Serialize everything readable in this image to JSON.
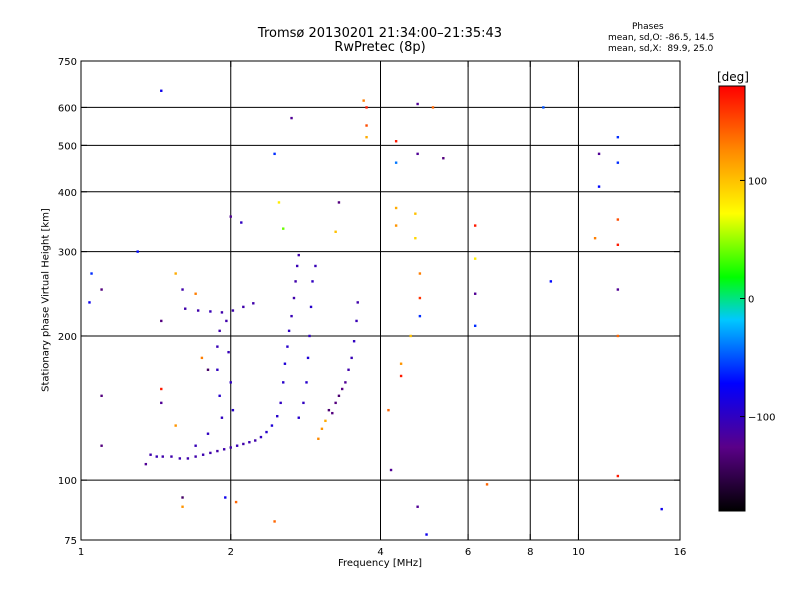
{
  "header": {
    "title_line1": "Tromsø 20130201 21:34:00–21:35:43",
    "title_line2": "RwPretec (8p)",
    "phases_heading": "Phases",
    "stats_o": "mean, sd,O: -86.5, 14.5",
    "stats_x": "mean, sd,X:  89.9, 25.0"
  },
  "colorbar": {
    "title": "[deg]",
    "ticks": [
      {
        "value": 100,
        "label": "100"
      },
      {
        "value": 0,
        "label": "0"
      },
      {
        "value": -100,
        "label": "−100"
      }
    ],
    "range": [
      -180,
      180
    ]
  },
  "chart_data": {
    "type": "scatter",
    "xlabel": "Frequency [MHz]",
    "ylabel": "Stationary phase Virtual Height [km]",
    "x_scale": "log",
    "y_scale": "log",
    "xlim": [
      1,
      16
    ],
    "ylim": [
      75,
      750
    ],
    "x_ticks": [
      {
        "value": 1,
        "label": "1"
      },
      {
        "value": 2,
        "label": "2"
      },
      {
        "value": 4,
        "label": "4"
      },
      {
        "value": 6,
        "label": "6"
      },
      {
        "value": 8,
        "label": "8"
      },
      {
        "value": 10,
        "label": "10"
      },
      {
        "value": 16,
        "label": "16"
      }
    ],
    "y_ticks": [
      {
        "value": 75,
        "label": "75"
      },
      {
        "value": 100,
        "label": "100"
      },
      {
        "value": 200,
        "label": "200"
      },
      {
        "value": 300,
        "label": "300"
      },
      {
        "value": 400,
        "label": "400"
      },
      {
        "value": 500,
        "label": "500"
      },
      {
        "value": 600,
        "label": "600"
      },
      {
        "value": 750,
        "label": "750"
      }
    ],
    "x_gridlines": [
      2,
      4,
      6,
      8,
      10
    ],
    "y_gridlines": [
      100,
      200,
      300,
      400,
      500,
      600
    ],
    "color_meaning": "phase [deg]",
    "points": [
      {
        "x": 1.38,
        "y": 113,
        "phase": -110
      },
      {
        "x": 1.42,
        "y": 112,
        "phase": -105
      },
      {
        "x": 1.46,
        "y": 112,
        "phase": -110
      },
      {
        "x": 1.52,
        "y": 112,
        "phase": -110
      },
      {
        "x": 1.58,
        "y": 111,
        "phase": -108
      },
      {
        "x": 1.64,
        "y": 111,
        "phase": -110
      },
      {
        "x": 1.7,
        "y": 112,
        "phase": -110
      },
      {
        "x": 1.76,
        "y": 113,
        "phase": -108
      },
      {
        "x": 1.82,
        "y": 114,
        "phase": -110
      },
      {
        "x": 1.88,
        "y": 115,
        "phase": -112
      },
      {
        "x": 1.94,
        "y": 116,
        "phase": -110
      },
      {
        "x": 2.0,
        "y": 117,
        "phase": -110
      },
      {
        "x": 2.06,
        "y": 118,
        "phase": -105
      },
      {
        "x": 2.12,
        "y": 119,
        "phase": -110
      },
      {
        "x": 2.18,
        "y": 120,
        "phase": -108
      },
      {
        "x": 2.24,
        "y": 121,
        "phase": -110
      },
      {
        "x": 2.3,
        "y": 123,
        "phase": -100
      },
      {
        "x": 2.36,
        "y": 126,
        "phase": -95
      },
      {
        "x": 2.42,
        "y": 130,
        "phase": -90
      },
      {
        "x": 2.48,
        "y": 136,
        "phase": -95
      },
      {
        "x": 2.52,
        "y": 145,
        "phase": -100
      },
      {
        "x": 2.55,
        "y": 160,
        "phase": -95
      },
      {
        "x": 2.57,
        "y": 175,
        "phase": -90
      },
      {
        "x": 2.6,
        "y": 190,
        "phase": -95
      },
      {
        "x": 2.62,
        "y": 205,
        "phase": -100
      },
      {
        "x": 2.65,
        "y": 220,
        "phase": -105
      },
      {
        "x": 2.68,
        "y": 240,
        "phase": -110
      },
      {
        "x": 2.7,
        "y": 260,
        "phase": -110
      },
      {
        "x": 2.72,
        "y": 280,
        "phase": -105
      },
      {
        "x": 2.74,
        "y": 295,
        "phase": -110
      },
      {
        "x": 1.62,
        "y": 228,
        "phase": -110
      },
      {
        "x": 1.72,
        "y": 226,
        "phase": -110
      },
      {
        "x": 1.82,
        "y": 225,
        "phase": -105
      },
      {
        "x": 1.92,
        "y": 224,
        "phase": -110
      },
      {
        "x": 2.02,
        "y": 226,
        "phase": -108
      },
      {
        "x": 2.12,
        "y": 230,
        "phase": -110
      },
      {
        "x": 2.22,
        "y": 234,
        "phase": -110
      },
      {
        "x": 1.92,
        "y": 135,
        "phase": -100
      },
      {
        "x": 1.9,
        "y": 150,
        "phase": -95
      },
      {
        "x": 1.88,
        "y": 170,
        "phase": -100
      },
      {
        "x": 1.88,
        "y": 190,
        "phase": -105
      },
      {
        "x": 1.9,
        "y": 205,
        "phase": -110
      },
      {
        "x": 1.96,
        "y": 215,
        "phase": -110
      },
      {
        "x": 1.98,
        "y": 185,
        "phase": -105
      },
      {
        "x": 2.0,
        "y": 160,
        "phase": -100
      },
      {
        "x": 2.02,
        "y": 140,
        "phase": -95
      },
      {
        "x": 1.8,
        "y": 125,
        "phase": -100
      },
      {
        "x": 1.7,
        "y": 118,
        "phase": -105
      },
      {
        "x": 2.92,
        "y": 260,
        "phase": -100
      },
      {
        "x": 2.9,
        "y": 230,
        "phase": -95
      },
      {
        "x": 2.88,
        "y": 200,
        "phase": -100
      },
      {
        "x": 2.86,
        "y": 180,
        "phase": -90
      },
      {
        "x": 2.84,
        "y": 160,
        "phase": -95
      },
      {
        "x": 2.8,
        "y": 145,
        "phase": -100
      },
      {
        "x": 2.74,
        "y": 135,
        "phase": -95
      },
      {
        "x": 2.96,
        "y": 280,
        "phase": -105
      },
      {
        "x": 3.25,
        "y": 145,
        "phase": -130
      },
      {
        "x": 3.3,
        "y": 150,
        "phase": -135
      },
      {
        "x": 3.35,
        "y": 155,
        "phase": -128
      },
      {
        "x": 3.4,
        "y": 160,
        "phase": -120
      },
      {
        "x": 3.45,
        "y": 170,
        "phase": -110
      },
      {
        "x": 3.5,
        "y": 180,
        "phase": -105
      },
      {
        "x": 3.54,
        "y": 195,
        "phase": -100
      },
      {
        "x": 3.58,
        "y": 215,
        "phase": -105
      },
      {
        "x": 3.6,
        "y": 235,
        "phase": -110
      },
      {
        "x": 3.15,
        "y": 140,
        "phase": -135
      },
      {
        "x": 3.2,
        "y": 138,
        "phase": -130
      },
      {
        "x": 3.1,
        "y": 133,
        "phase": 110
      },
      {
        "x": 3.05,
        "y": 128,
        "phase": 120
      },
      {
        "x": 3.0,
        "y": 122,
        "phase": 125
      },
      {
        "x": 1.45,
        "y": 650,
        "phase": -80
      },
      {
        "x": 2.65,
        "y": 570,
        "phase": -120
      },
      {
        "x": 3.75,
        "y": 600,
        "phase": 170
      },
      {
        "x": 3.7,
        "y": 620,
        "phase": 130
      },
      {
        "x": 3.75,
        "y": 550,
        "phase": 150
      },
      {
        "x": 3.75,
        "y": 520,
        "phase": 110
      },
      {
        "x": 4.75,
        "y": 610,
        "phase": -120
      },
      {
        "x": 5.1,
        "y": 600,
        "phase": 140
      },
      {
        "x": 4.3,
        "y": 510,
        "phase": 170
      },
      {
        "x": 4.3,
        "y": 460,
        "phase": -40
      },
      {
        "x": 4.75,
        "y": 480,
        "phase": -120
      },
      {
        "x": 5.35,
        "y": 470,
        "phase": -130
      },
      {
        "x": 4.3,
        "y": 370,
        "phase": 110
      },
      {
        "x": 4.3,
        "y": 340,
        "phase": 120
      },
      {
        "x": 4.7,
        "y": 360,
        "phase": 100
      },
      {
        "x": 4.7,
        "y": 320,
        "phase": 90
      },
      {
        "x": 4.8,
        "y": 270,
        "phase": 130
      },
      {
        "x": 4.8,
        "y": 240,
        "phase": 160
      },
      {
        "x": 4.8,
        "y": 220,
        "phase": -60
      },
      {
        "x": 4.6,
        "y": 200,
        "phase": 100
      },
      {
        "x": 4.4,
        "y": 175,
        "phase": 120
      },
      {
        "x": 4.4,
        "y": 165,
        "phase": 170
      },
      {
        "x": 4.15,
        "y": 140,
        "phase": 140
      },
      {
        "x": 4.2,
        "y": 105,
        "phase": -120
      },
      {
        "x": 4.75,
        "y": 88,
        "phase": -120
      },
      {
        "x": 4.95,
        "y": 77,
        "phase": -80
      },
      {
        "x": 6.2,
        "y": 340,
        "phase": 170
      },
      {
        "x": 6.2,
        "y": 290,
        "phase": 80
      },
      {
        "x": 6.2,
        "y": 245,
        "phase": -120
      },
      {
        "x": 6.2,
        "y": 210,
        "phase": -60
      },
      {
        "x": 6.55,
        "y": 98,
        "phase": 140
      },
      {
        "x": 8.5,
        "y": 600,
        "phase": -50
      },
      {
        "x": 8.8,
        "y": 260,
        "phase": -70
      },
      {
        "x": 11.0,
        "y": 480,
        "phase": -120
      },
      {
        "x": 11.0,
        "y": 410,
        "phase": -70
      },
      {
        "x": 12.0,
        "y": 520,
        "phase": -60
      },
      {
        "x": 12.0,
        "y": 460,
        "phase": -60
      },
      {
        "x": 12.0,
        "y": 350,
        "phase": 150
      },
      {
        "x": 12.0,
        "y": 310,
        "phase": 170
      },
      {
        "x": 12.0,
        "y": 250,
        "phase": -120
      },
      {
        "x": 12.0,
        "y": 200,
        "phase": 140
      },
      {
        "x": 12.0,
        "y": 102,
        "phase": 170
      },
      {
        "x": 14.7,
        "y": 87,
        "phase": -80
      },
      {
        "x": 10.8,
        "y": 320,
        "phase": 130
      },
      {
        "x": 1.05,
        "y": 270,
        "phase": -60
      },
      {
        "x": 1.04,
        "y": 235,
        "phase": -80
      },
      {
        "x": 1.1,
        "y": 250,
        "phase": -130
      },
      {
        "x": 1.3,
        "y": 300,
        "phase": -70
      },
      {
        "x": 1.45,
        "y": 215,
        "phase": -130
      },
      {
        "x": 1.1,
        "y": 150,
        "phase": -130
      },
      {
        "x": 1.1,
        "y": 118,
        "phase": -130
      },
      {
        "x": 1.45,
        "y": 155,
        "phase": 170
      },
      {
        "x": 1.45,
        "y": 145,
        "phase": -120
      },
      {
        "x": 1.55,
        "y": 130,
        "phase": 120
      },
      {
        "x": 1.35,
        "y": 108,
        "phase": -120
      },
      {
        "x": 1.6,
        "y": 92,
        "phase": -140
      },
      {
        "x": 1.6,
        "y": 88,
        "phase": 120
      },
      {
        "x": 1.75,
        "y": 180,
        "phase": 130
      },
      {
        "x": 1.8,
        "y": 170,
        "phase": -140
      },
      {
        "x": 1.95,
        "y": 92,
        "phase": -80
      },
      {
        "x": 2.05,
        "y": 90,
        "phase": 140
      },
      {
        "x": 2.45,
        "y": 480,
        "phase": -60
      },
      {
        "x": 2.5,
        "y": 380,
        "phase": 80
      },
      {
        "x": 2.55,
        "y": 335,
        "phase": 40
      },
      {
        "x": 2.0,
        "y": 355,
        "phase": -120
      },
      {
        "x": 2.1,
        "y": 345,
        "phase": -100
      },
      {
        "x": 3.25,
        "y": 330,
        "phase": 100
      },
      {
        "x": 3.3,
        "y": 380,
        "phase": -130
      },
      {
        "x": 2.45,
        "y": 82,
        "phase": 140
      },
      {
        "x": 1.55,
        "y": 270,
        "phase": 110
      },
      {
        "x": 1.6,
        "y": 250,
        "phase": -110
      },
      {
        "x": 1.7,
        "y": 245,
        "phase": 130
      }
    ]
  }
}
